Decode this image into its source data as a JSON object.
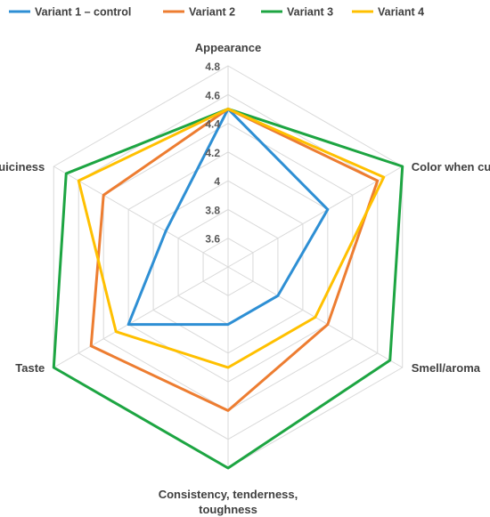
{
  "chart_data": {
    "type": "radar",
    "axes": [
      "Appearance",
      "Color when cut",
      "Smell/aroma",
      "Consistency, tenderness, toughness",
      "Taste",
      "Juiciness"
    ],
    "axis_label_lines": [
      [
        "Appearance"
      ],
      [
        "Color when cut"
      ],
      [
        "Smell/aroma"
      ],
      [
        "Consistency, tenderness,",
        "toughness"
      ],
      [
        "Taste"
      ],
      [
        "Juiciness"
      ]
    ],
    "rlim": [
      3.4,
      4.8
    ],
    "ticks": [
      3.6,
      3.8,
      4,
      4.2,
      4.4,
      4.6,
      4.8
    ],
    "grid": true,
    "legend_position": "top",
    "series": [
      {
        "name": "Variant 1 – control",
        "color": "#2E8FD4",
        "values": [
          4.5,
          4.2,
          3.8,
          3.8,
          4.2,
          3.9
        ]
      },
      {
        "name": "Variant 2",
        "color": "#ED7D31",
        "values": [
          4.5,
          4.6,
          4.2,
          4.4,
          4.5,
          4.4
        ]
      },
      {
        "name": "Variant 3",
        "color": "#1DA542",
        "values": [
          4.5,
          4.8,
          4.7,
          4.8,
          4.8,
          4.7
        ]
      },
      {
        "name": "Variant 4",
        "color": "#FFC000",
        "values": [
          4.5,
          4.65,
          4.1,
          4.1,
          4.3,
          4.6
        ]
      }
    ]
  }
}
